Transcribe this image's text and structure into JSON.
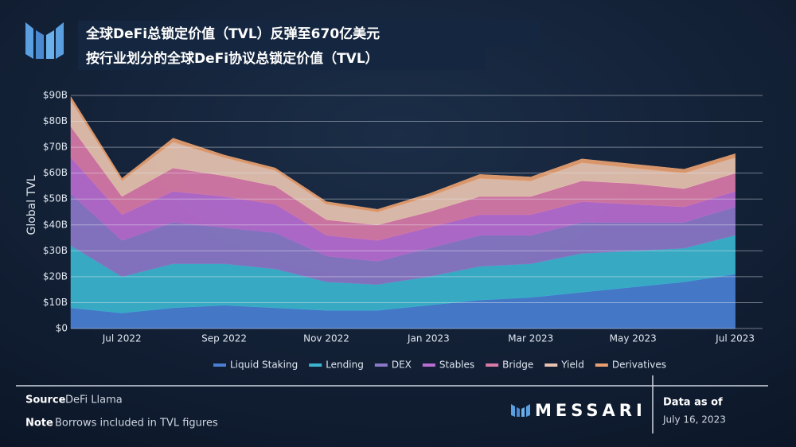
{
  "chart_data": {
    "type": "stacked_area",
    "title": "全球DeFi总锁定价值（TVL）反弹至670亿美元",
    "subtitle": "按行业划分的全球DeFi协议总锁定价值（TVL）",
    "y_label": "Global TVL",
    "categories": [
      null,
      "Jul 2022",
      null,
      "Sep 2022",
      null,
      "Nov 2022",
      null,
      "Jan 2023",
      null,
      "Mar 2023",
      null,
      "May 2023",
      null,
      "Jul 2023"
    ],
    "ylim": [
      0,
      90
    ],
    "yticks": [
      {
        "value": 0,
        "label": "$0"
      },
      {
        "value": 10,
        "label": "$10B"
      },
      {
        "value": 20,
        "label": "$20B"
      },
      {
        "value": 30,
        "label": "$30B"
      },
      {
        "value": 40,
        "label": "$40B"
      },
      {
        "value": 50,
        "label": "$50B"
      },
      {
        "value": 60,
        "label": "$60B"
      },
      {
        "value": 70,
        "label": "$70B"
      },
      {
        "value": 80,
        "label": "$80B"
      },
      {
        "value": 90,
        "label": "$90B"
      }
    ],
    "grid": true,
    "legend": "bottom",
    "series": [
      {
        "name": "Liquid Staking",
        "color": "#4a7fd4",
        "values": [
          8,
          6,
          8,
          9,
          8,
          7,
          7,
          9,
          11,
          12,
          14,
          16,
          18,
          21
        ]
      },
      {
        "name": "Lending",
        "color": "#3bb5cf",
        "values": [
          24,
          14,
          17,
          16,
          15,
          11,
          10,
          11,
          13,
          13,
          15,
          14,
          13,
          15
        ]
      },
      {
        "name": "DEX",
        "color": "#8b78c8",
        "values": [
          20,
          14,
          16,
          14,
          14,
          10,
          9,
          11,
          12,
          11,
          12,
          11,
          10,
          11
        ]
      },
      {
        "name": "Stables",
        "color": "#b86dd0",
        "values": [
          14,
          10,
          12,
          12,
          11,
          8,
          8,
          8,
          8,
          8,
          8,
          7,
          6,
          6
        ]
      },
      {
        "name": "Bridge",
        "color": "#d97aa8",
        "values": [
          12,
          7,
          9,
          8,
          7,
          6,
          6,
          6,
          7,
          7,
          8,
          8,
          7,
          7
        ]
      },
      {
        "name": "Yield",
        "color": "#e8c3b0",
        "values": [
          10,
          6,
          10,
          7,
          6,
          6,
          5,
          6,
          7,
          6,
          7,
          6,
          6,
          6
        ]
      },
      {
        "name": "Derivatives",
        "color": "#e8a070",
        "values": [
          1.5,
          1,
          1.5,
          1,
          1,
          1,
          1,
          1,
          1.5,
          1.5,
          1.5,
          1.5,
          1.5,
          1.5
        ]
      }
    ]
  },
  "footer": {
    "source_label": "Source",
    "source": "DeFi Llama",
    "note_label": "Note",
    "note": "Borrows included in TVL figures",
    "brand": "MESSARI",
    "data_as_of": "Data as of",
    "date": "July 16, 2023"
  }
}
